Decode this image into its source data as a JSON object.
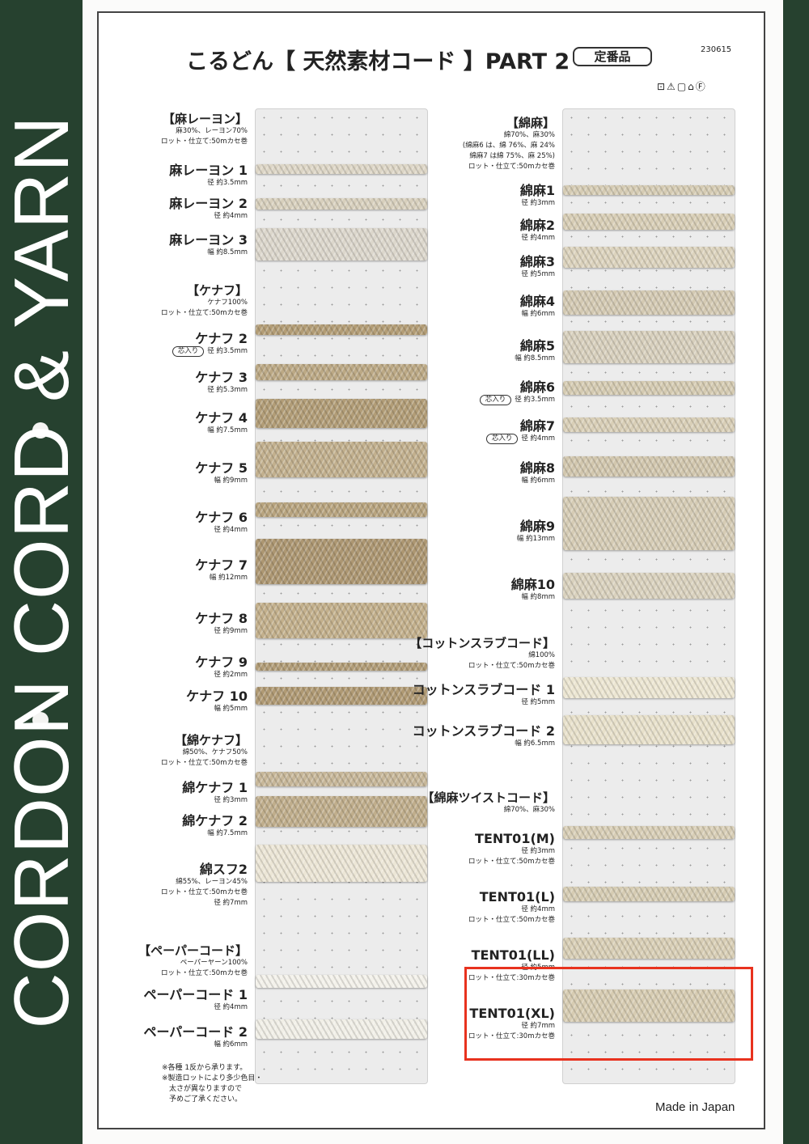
{
  "side_band": {
    "text": "CORDON CORD & YARN",
    "color": "#26412f"
  },
  "header": {
    "title": "こるどん【 天然素材コード 】PART 2",
    "standard_badge": "定番品",
    "code": "230615",
    "care_symbols": "⊡⚠▢⌂Ⓕ"
  },
  "left": {
    "items": [
      {
        "kind": "head",
        "title": "【麻レーヨン】",
        "lines": [
          "麻30%、レーヨン70%",
          "ロット・仕立て:50mカセ巻"
        ]
      },
      {
        "kind": "item",
        "title": "麻レーヨン 1",
        "lines": [
          "径 約3.5mm"
        ],
        "color": "#ddd6c6"
      },
      {
        "kind": "item",
        "title": "麻レーヨン 2",
        "lines": [
          "径 約4mm"
        ],
        "color": "#d8d0bd"
      },
      {
        "kind": "item",
        "title": "麻レーヨン 3",
        "lines": [
          "幅 約8.5mm"
        ],
        "color": "#dcd7cc"
      },
      {
        "kind": "head",
        "title": "【ケナフ】",
        "lines": [
          "ケナフ100%",
          "ロット・仕立て:50mカセ巻"
        ]
      },
      {
        "kind": "item",
        "title": "ケナフ 2",
        "badge": "芯入り",
        "lines": [
          "径 約3.5mm"
        ],
        "color": "#b39d76"
      },
      {
        "kind": "item",
        "title": "ケナフ 3",
        "lines": [
          "径 約5.3mm"
        ],
        "color": "#bca985"
      },
      {
        "kind": "item",
        "title": "ケナフ 4",
        "lines": [
          "幅 約7.5mm"
        ],
        "color": "#b29d77"
      },
      {
        "kind": "item",
        "title": "ケナフ 5",
        "lines": [
          "幅 約9mm"
        ],
        "color": "#c2b08e"
      },
      {
        "kind": "item",
        "title": "ケナフ 6",
        "lines": [
          "径 約4mm"
        ],
        "color": "#b8a47f"
      },
      {
        "kind": "item",
        "title": "ケナフ 7",
        "lines": [
          "幅 約12mm"
        ],
        "color": "#ad9772"
      },
      {
        "kind": "item",
        "title": "ケナフ 8",
        "lines": [
          "径 約9mm"
        ],
        "color": "#c3b08c"
      },
      {
        "kind": "item",
        "title": "ケナフ 9",
        "lines": [
          "径 約2mm"
        ],
        "color": "#b29d78"
      },
      {
        "kind": "item",
        "title": "ケナフ 10",
        "lines": [
          "幅 約5mm"
        ],
        "color": "#b09a74"
      },
      {
        "kind": "head",
        "title": "【綿ケナフ】",
        "lines": [
          "綿50%、ケナフ50%",
          "ロット・仕立て:50mカセ巻"
        ]
      },
      {
        "kind": "item",
        "title": "綿ケナフ 1",
        "lines": [
          "径 約3mm"
        ],
        "color": "#c7b799"
      },
      {
        "kind": "item",
        "title": "綿ケナフ 2",
        "lines": [
          "幅 約7.5mm"
        ],
        "color": "#c0ae8c"
      },
      {
        "kind": "item",
        "title": "綿スフ2",
        "lines": [
          "綿55%、レーヨン45%",
          "ロット・仕立て:50mカセ巻",
          "径 約7mm"
        ],
        "color": "#ece6d6"
      },
      {
        "kind": "head",
        "title": "【ペーパーコード】",
        "lines": [
          "ペーパーヤーン100%",
          "ロット・仕立て:50mカセ巻"
        ]
      },
      {
        "kind": "item",
        "title": "ペーパーコード 1",
        "lines": [
          "径 約4mm"
        ],
        "color": "#f3f1ea"
      },
      {
        "kind": "item",
        "title": "ペーパーコード 2",
        "lines": [
          "幅 約6mm"
        ],
        "color": "#f1efe7"
      }
    ]
  },
  "right": {
    "items": [
      {
        "kind": "head",
        "title": "【綿麻】",
        "lines": [
          "綿70%、麻30%",
          "(綿麻6 は、綿 76%、麻 24%",
          "綿麻7 は綿 75%、麻 25%)",
          "ロット・仕立て:50mカセ巻"
        ]
      },
      {
        "kind": "item",
        "title": "綿麻1",
        "lines": [
          "径 約3mm"
        ],
        "color": "#d6ccb4"
      },
      {
        "kind": "item",
        "title": "綿麻2",
        "lines": [
          "径 約4mm"
        ],
        "color": "#d8ceb6"
      },
      {
        "kind": "item",
        "title": "綿麻3",
        "lines": [
          "径 約5mm"
        ],
        "color": "#dcd3bd"
      },
      {
        "kind": "item",
        "title": "綿麻4",
        "lines": [
          "幅 約6mm"
        ],
        "color": "#d4cab3"
      },
      {
        "kind": "item",
        "title": "綿麻5",
        "lines": [
          "幅 約8.5mm"
        ],
        "color": "#d8d0bd"
      },
      {
        "kind": "item",
        "title": "綿麻6",
        "badge": "芯入り",
        "lines": [
          "径 約3.5mm"
        ],
        "color": "#d5cbb2"
      },
      {
        "kind": "item",
        "title": "綿麻7",
        "badge": "芯入り",
        "lines": [
          "径 約4mm"
        ],
        "color": "#d9cfb7"
      },
      {
        "kind": "item",
        "title": "綿麻8",
        "lines": [
          "幅 約6mm"
        ],
        "color": "#d2c7ae"
      },
      {
        "kind": "item",
        "title": "綿麻9",
        "lines": [
          "幅 約13mm"
        ],
        "color": "#d6ccb5"
      },
      {
        "kind": "item",
        "title": "綿麻10",
        "lines": [
          "幅 約8mm"
        ],
        "color": "#dad2be"
      },
      {
        "kind": "head",
        "title": "【コットンスラブコード】",
        "lines": [
          "綿100%",
          "ロット・仕立て:50mカセ巻"
        ]
      },
      {
        "kind": "item",
        "title": "コットンスラブコード 1",
        "lines": [
          "径 約5mm"
        ],
        "color": "#ece6d2"
      },
      {
        "kind": "item",
        "title": "コットンスラブコード 2",
        "lines": [
          "幅 約6.5mm"
        ],
        "color": "#e8e1cb"
      },
      {
        "kind": "head",
        "title": "【綿麻ツイストコード】",
        "lines": [
          "綿70%、麻30%"
        ]
      },
      {
        "kind": "item",
        "title": "TENT01(M)",
        "lines": [
          "径 約3mm",
          "ロット・仕立て:50mカセ巻"
        ],
        "color": "#d8ceb6"
      },
      {
        "kind": "item",
        "title": "TENT01(L)",
        "lines": [
          "径 約4mm",
          "ロット・仕立て:50mカセ巻"
        ],
        "color": "#d6ccb3"
      },
      {
        "kind": "item",
        "title": "TENT01(LL)",
        "lines": [
          "径 約5mm",
          "ロット・仕立て:30mカセ巻"
        ],
        "color": "#d9cfb6"
      },
      {
        "kind": "item",
        "title": "TENT01(XL)",
        "lines": [
          "径 約7mm",
          "ロット・仕立て:30mカセ巻"
        ],
        "color": "#d7ccb2"
      }
    ]
  },
  "notes": [
    "※各種 1反から承ります。",
    "※製造ロットにより多少色目・",
    "　太さが異なりますので",
    "　予めご了承ください。"
  ],
  "highlight_color": "#e8321e",
  "footer": {
    "made_in": "Made in Japan"
  }
}
